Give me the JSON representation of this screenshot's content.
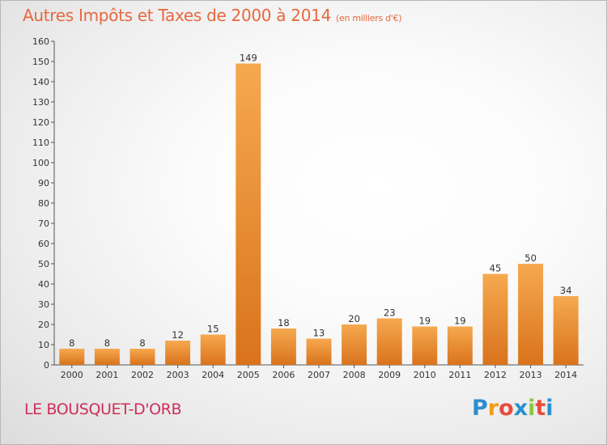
{
  "header": {
    "title": "Autres Impôts et Taxes de 2000 à 2014",
    "subtitle": "(en milliers d'€)"
  },
  "footer": {
    "commune": "LE BOUSQUET-D'ORB",
    "brand": {
      "letters": [
        "P",
        "r",
        "o",
        "x",
        "i",
        "t",
        "i"
      ],
      "colors": [
        "#2a8fd0",
        "#f39c12",
        "#e74c3c",
        "#2a8fd0",
        "#8cc63f",
        "#e74c3c",
        "#2a8fd0"
      ]
    }
  },
  "colors": {
    "bar_light": "#f6a94f",
    "bar_dark": "#d9731c",
    "title": "#e7683f",
    "commune": "#cf2e5c"
  },
  "chart_data": {
    "type": "bar",
    "categories": [
      "2000",
      "2001",
      "2002",
      "2003",
      "2004",
      "2005",
      "2006",
      "2007",
      "2008",
      "2009",
      "2010",
      "2011",
      "2012",
      "2013",
      "2014"
    ],
    "values": [
      8,
      8,
      8,
      12,
      15,
      149,
      18,
      13,
      20,
      23,
      19,
      19,
      45,
      50,
      34
    ],
    "title": "Autres Impôts et Taxes de 2000 à 2014",
    "ylim": [
      0,
      160
    ],
    "ytick_step": 10,
    "grid": false,
    "legend": "none"
  }
}
